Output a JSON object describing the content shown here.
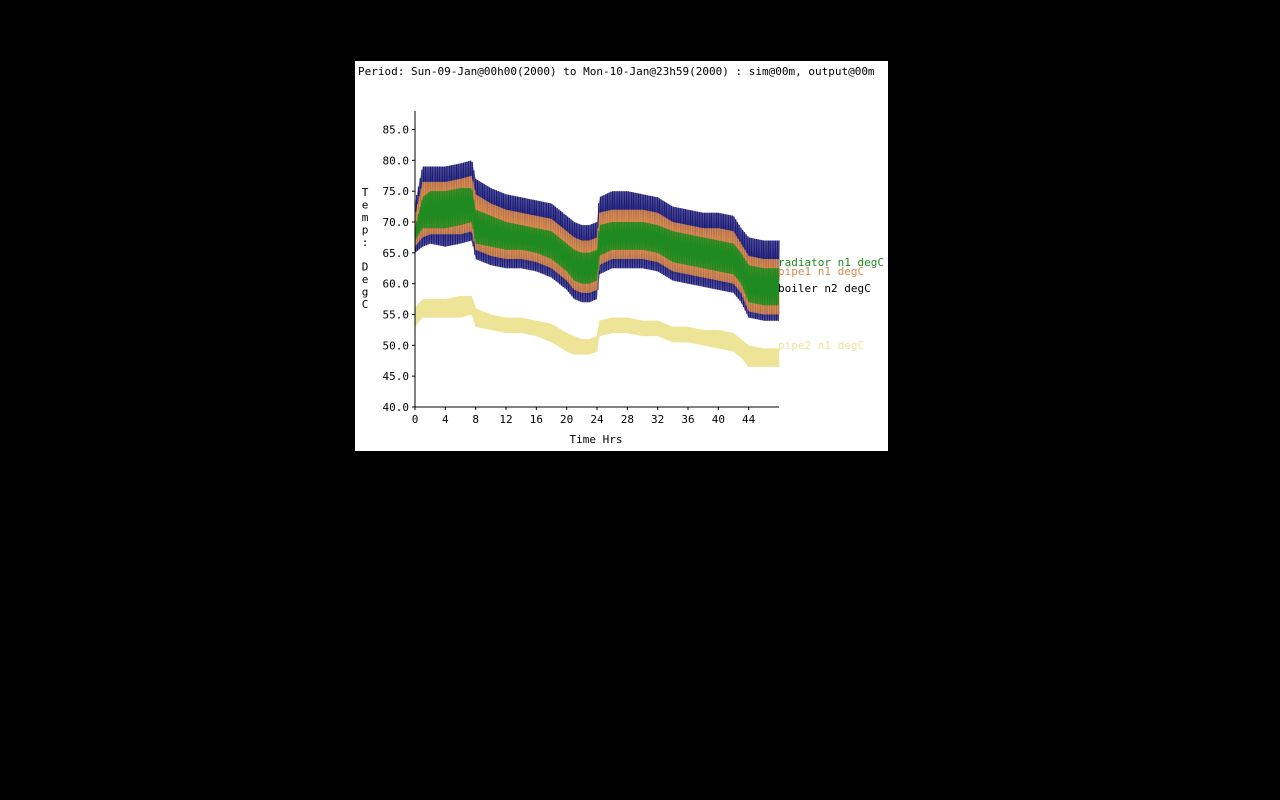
{
  "period_label": "Period: Sun-09-Jan@00h00(2000) to Mon-10-Jan@23h59(2000) : sim@00m, output@00m",
  "colors": {
    "background": "#000000",
    "panel": "#ffffff",
    "axis": "#000000",
    "boiler": "#1c1c78",
    "pipe1": "#d98a4c",
    "radiator": "#1f8a1f",
    "pipe2": "#eee497"
  },
  "chart_data": {
    "type": "line",
    "title": "",
    "xlabel": "Time Hrs",
    "ylabel": "Temp: DegC",
    "xlim": [
      0,
      48
    ],
    "ylim": [
      40,
      88
    ],
    "x_ticks": [
      "0",
      "4",
      "8",
      "12",
      "16",
      "20",
      "24",
      "28",
      "32",
      "36",
      "40",
      "44"
    ],
    "y_ticks": [
      "40.0",
      "45.0",
      "50.0",
      "55.0",
      "60.0",
      "65.0",
      "70.0",
      "75.0",
      "80.0",
      "85.0"
    ],
    "grid": false,
    "legend_placement": "right, at series ends",
    "series": [
      {
        "name": "boiler n2 degC",
        "color_key": "boiler",
        "x": [
          0,
          1,
          2,
          4,
          6,
          7.5,
          8,
          10,
          12,
          14,
          16,
          18,
          20,
          21,
          22,
          23,
          24,
          24.3,
          26,
          28,
          30,
          32,
          34,
          36,
          38,
          40,
          42,
          43,
          44,
          46,
          48
        ],
        "upper": [
          73,
          79,
          79,
          79,
          79.5,
          80,
          77,
          75.5,
          74.5,
          74,
          73.5,
          73,
          71,
          70,
          69.5,
          69.5,
          70,
          74,
          75,
          75,
          74.5,
          74,
          72.5,
          72,
          71.5,
          71.5,
          71,
          69,
          67.5,
          67,
          67
        ],
        "lower": [
          65,
          66,
          66.5,
          66,
          66.5,
          67,
          64,
          63,
          62.5,
          62.5,
          62,
          61,
          59,
          57.5,
          57,
          57,
          57.5,
          61.5,
          62.5,
          62.5,
          62.5,
          62,
          60.5,
          60,
          59.5,
          59,
          58.5,
          57,
          54.5,
          54,
          54
        ]
      },
      {
        "name": "pipe1 n1 degC",
        "color_key": "pipe1",
        "x": [
          0,
          1,
          2,
          4,
          6,
          7.5,
          8,
          10,
          12,
          14,
          16,
          18,
          20,
          21,
          22,
          23,
          24,
          24.3,
          26,
          28,
          30,
          32,
          34,
          36,
          38,
          40,
          42,
          43,
          44,
          46,
          48
        ],
        "upper": [
          71,
          76.5,
          76.5,
          76.5,
          77,
          77.5,
          74.5,
          73,
          72,
          71.5,
          71,
          70.5,
          68.5,
          67.5,
          67,
          67,
          67.5,
          71.5,
          72,
          72,
          72,
          71.5,
          70,
          69.5,
          69,
          69,
          68.5,
          66.5,
          64.5,
          64,
          64
        ],
        "lower": [
          66,
          67.5,
          68,
          68,
          68,
          68.5,
          65.5,
          64.5,
          64,
          64,
          63.5,
          62.5,
          60.5,
          59,
          58.5,
          58.5,
          59,
          63,
          64,
          64,
          64,
          63.5,
          62,
          61.5,
          61,
          60.5,
          60,
          58.5,
          55.5,
          55,
          55
        ]
      },
      {
        "name": "radiator n1 degC",
        "color_key": "radiator",
        "x": [
          0,
          1,
          2,
          4,
          6,
          7.5,
          8,
          10,
          12,
          14,
          16,
          18,
          20,
          21,
          22,
          23,
          24,
          24.3,
          26,
          28,
          30,
          32,
          34,
          36,
          38,
          40,
          42,
          43,
          44,
          46,
          48
        ],
        "upper": [
          69,
          74,
          75,
          75,
          75.5,
          75.5,
          72,
          71,
          70,
          69.5,
          69,
          68.5,
          66.5,
          65.5,
          65,
          65,
          65.5,
          69.5,
          70,
          70,
          70,
          69.5,
          68.5,
          68,
          67.5,
          67,
          66.5,
          65,
          63,
          62.5,
          62.5
        ],
        "lower": [
          67,
          69,
          69,
          69,
          69.5,
          70,
          66.5,
          66,
          65.5,
          65.5,
          65,
          64,
          62,
          60.5,
          60,
          60,
          60.5,
          64.5,
          65.5,
          65.5,
          65.5,
          65,
          63.5,
          63,
          62.5,
          62,
          61.5,
          60,
          57,
          56.5,
          56.5
        ]
      },
      {
        "name": "pipe2 n1 degC",
        "color_key": "pipe2",
        "x": [
          0,
          1,
          2,
          4,
          6,
          7.5,
          8,
          10,
          12,
          14,
          16,
          18,
          20,
          21,
          22,
          23,
          24,
          24.3,
          26,
          28,
          30,
          32,
          34,
          36,
          38,
          40,
          42,
          43,
          44,
          46,
          48
        ],
        "upper": [
          56,
          57.5,
          57.5,
          57.5,
          58,
          58,
          56,
          55,
          54.5,
          54.5,
          54,
          53.5,
          52,
          51.5,
          51,
          51,
          51.5,
          54,
          54.5,
          54.5,
          54,
          54,
          53,
          53,
          52.5,
          52.5,
          52,
          51,
          50,
          49.5,
          49.5
        ],
        "lower": [
          53,
          54.5,
          54.5,
          54.5,
          54.5,
          55,
          53,
          52.5,
          52,
          52,
          51.5,
          50.5,
          49,
          48.5,
          48.5,
          48.5,
          49,
          51.5,
          52,
          52,
          51.5,
          51.5,
          50.5,
          50.5,
          50,
          49.5,
          49,
          48,
          46.5,
          46.5,
          46.5
        ]
      }
    ]
  }
}
